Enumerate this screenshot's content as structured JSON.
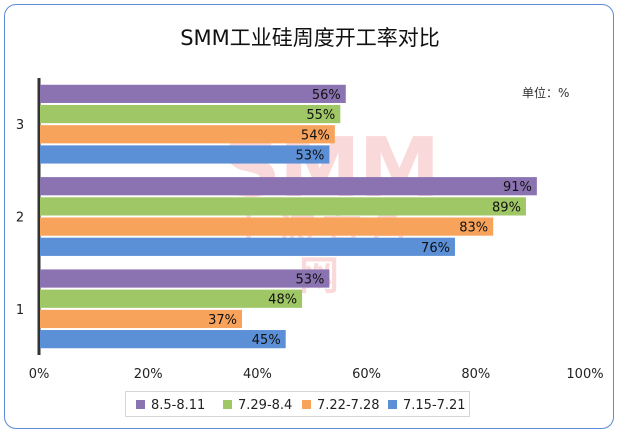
{
  "chart_data": {
    "type": "bar",
    "orientation": "horizontal",
    "title": "SMM工业硅周度开工率对比",
    "unit_label": "单位：%",
    "categories": [
      "3",
      "2",
      "1"
    ],
    "series": [
      {
        "name": "8.5-8.11",
        "color": "#8b72b0",
        "values": [
          56,
          91,
          53
        ],
        "labels": [
          "56%",
          "91%",
          "53%"
        ]
      },
      {
        "name": "7.29-8.4",
        "color": "#9fc765",
        "values": [
          55,
          89,
          48
        ],
        "labels": [
          "55%",
          "89%",
          "48%"
        ]
      },
      {
        "name": "7.22-7.28",
        "color": "#f7a35c",
        "values": [
          54,
          83,
          37
        ],
        "labels": [
          "54%",
          "83%",
          "37%"
        ]
      },
      {
        "name": "7.15-7.21",
        "color": "#5b8fd6",
        "values": [
          53,
          76,
          45
        ],
        "labels": [
          "53%",
          "76%",
          "45%"
        ]
      }
    ],
    "xlim": [
      0,
      100
    ],
    "x_ticks": [
      "0%",
      "20%",
      "40%",
      "60%",
      "80%",
      "100%"
    ],
    "legend_position": "bottom",
    "grid": false
  },
  "watermark": {
    "line1": "SMM",
    "line2": "上海有色网"
  }
}
